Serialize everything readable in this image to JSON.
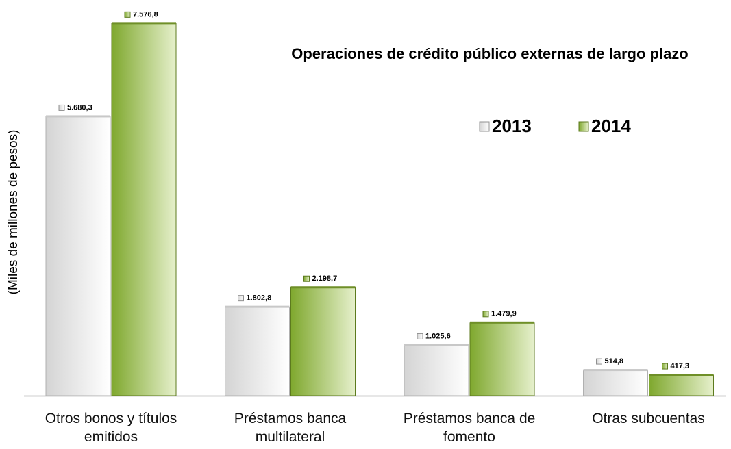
{
  "chart_data": {
    "type": "bar",
    "title": "Operaciones de crédito público externas de largo plazo",
    "y_label": "(Miles de millones de pesos)",
    "categories": [
      "Otros bonos y títulos emitidos",
      "Préstamos banca multilateral",
      "Préstamos banca de fomento",
      "Otras subcuentas"
    ],
    "series": [
      {
        "name": "2013",
        "color": "#d9d9d9",
        "values": [
          5680.3,
          1802.8,
          1025.6,
          514.8
        ],
        "value_labels": [
          "5.680,3",
          "1.802,8",
          "1.025,6",
          "514,8"
        ]
      },
      {
        "name": "2014",
        "color": "#8db33a",
        "values": [
          7576.8,
          2198.7,
          1479.9,
          417.3
        ],
        "value_labels": [
          "7.576,8",
          "2.198,7",
          "1.479,9",
          "417,3"
        ]
      }
    ],
    "ylim": [
      0,
      8000
    ],
    "grid": false
  }
}
